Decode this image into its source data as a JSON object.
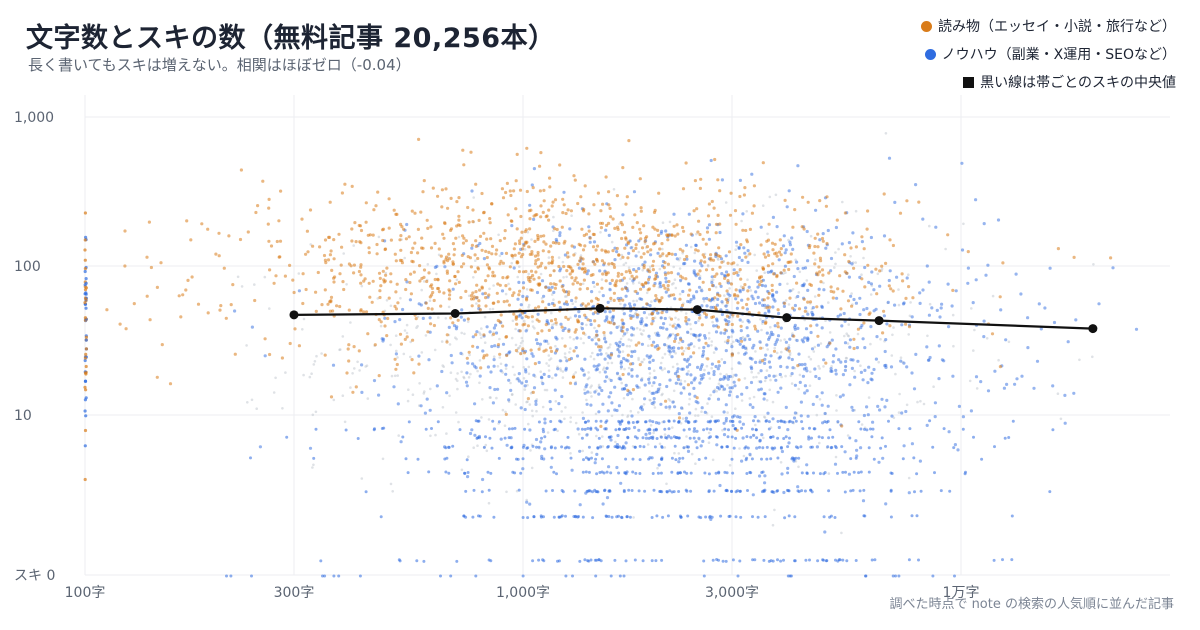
{
  "chart_data": {
    "type": "scatter",
    "title": "文字数とスキの数（無料記事 20,256本）",
    "subtitle": "長く書いてもスキは増えない。相関はほぼゼロ（-0.04）",
    "xlabel": "",
    "ylabel": "",
    "x_scale": "log",
    "y_scale": "log",
    "xlim": [
      100,
      30000
    ],
    "ylim": [
      0,
      1000
    ],
    "x_ticks": [
      {
        "value": 100,
        "label": "100字"
      },
      {
        "value": 300,
        "label": "300字"
      },
      {
        "value": 1000,
        "label": "1,000字"
      },
      {
        "value": 3000,
        "label": "3,000字"
      },
      {
        "value": 10000,
        "label": "1万字"
      }
    ],
    "y_ticks": [
      {
        "value": 0,
        "label": "スキ 0"
      },
      {
        "value": 10,
        "label": "10"
      },
      {
        "value": 100,
        "label": "100"
      },
      {
        "value": 1000,
        "label": "1,000"
      }
    ],
    "grid": true,
    "legend_position": "top-right",
    "series": [
      {
        "name": "読み物（エッセイ・小説・旅行など）",
        "color": "#d97c1a",
        "marker": "dot"
      },
      {
        "name": "ノウハウ（副業・X運用・SEOなど）",
        "color": "#2f6ce0",
        "marker": "dot"
      },
      {
        "name": "黒い線は帯ごとのスキの中央値",
        "color": "#111111",
        "marker": "square",
        "median_line": {
          "x": [
            300,
            700,
            1500,
            2500,
            4000,
            6500,
            20000
          ],
          "y": [
            47,
            48,
            52,
            51,
            45,
            43,
            38
          ]
        }
      }
    ],
    "other_color": "#b9bec8",
    "source_note": "調べた時点で note の検索の人気順に並んだ記事"
  }
}
